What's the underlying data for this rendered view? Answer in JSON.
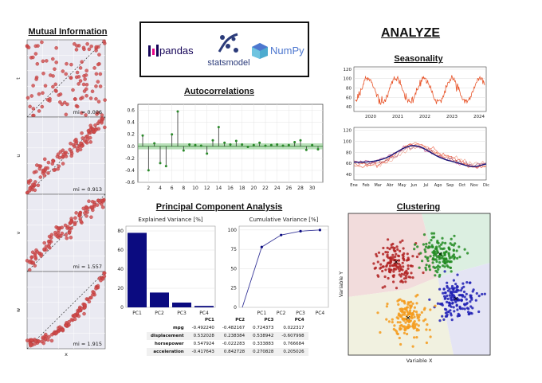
{
  "mutual_info": {
    "title": "Mutual Information",
    "xlabel": "x",
    "panels": [
      {
        "ylabel": "t",
        "mi": "mi = 0.006"
      },
      {
        "ylabel": "u",
        "mi": "mi = 0.913"
      },
      {
        "ylabel": "v",
        "mi": "mi = 1.557"
      },
      {
        "ylabel": "w",
        "mi": "mi = 1.915"
      }
    ]
  },
  "logos": {
    "pandas": "pandas",
    "statsmodel": "statsmodel",
    "numpy": "NumPy"
  },
  "analyze_title": "ANALYZE",
  "autocorr": {
    "title": "Autocorrelations",
    "y_ticks": [
      "0.6",
      "0.4",
      "0.2",
      "0.0",
      "-0.2",
      "-0.4",
      "-0.6"
    ],
    "x_ticks": [
      "2",
      "4",
      "6",
      "8",
      "10",
      "12",
      "14",
      "16",
      "18",
      "20",
      "22",
      "24",
      "26",
      "28",
      "30"
    ]
  },
  "seasonality": {
    "title": "Seasonality",
    "top_y_ticks": [
      "120",
      "100",
      "80",
      "60",
      "40"
    ],
    "top_x_ticks": [
      "2020",
      "2021",
      "2022",
      "2023",
      "2024"
    ],
    "bottom_y_ticks": [
      "120",
      "100",
      "80",
      "60",
      "40"
    ],
    "bottom_x_ticks": [
      "Ene",
      "Feb",
      "Mar",
      "Abr",
      "May",
      "Jun",
      "Jul",
      "Ago",
      "Sep",
      "Oct",
      "Nov",
      "Dic"
    ]
  },
  "pca": {
    "title": "Principal Component Analysis",
    "explained_title": "Explained Variance [%]",
    "cumulative_title": "Cumulative Variance [%]",
    "exp_y_ticks": [
      "80",
      "60",
      "40",
      "20",
      "0"
    ],
    "cum_y_ticks": [
      "100",
      "75",
      "50",
      "25",
      "0"
    ],
    "table": {
      "headers": [
        "",
        "PC1",
        "PC2",
        "PC3",
        "PC4"
      ],
      "rows": [
        [
          "mpg",
          "-0.492240",
          "-0.482167",
          "0.724373",
          "0.022317"
        ],
        [
          "displacement",
          "0.532028",
          "0.238384",
          "0.538942",
          "-0.607998"
        ],
        [
          "horsepower",
          "0.547924",
          "-0.022283",
          "0.333883",
          "0.766684"
        ],
        [
          "acceleration",
          "-0.417643",
          "0.842728",
          "0.270828",
          "0.205026"
        ]
      ]
    }
  },
  "clustering": {
    "title": "Clustering",
    "xlabel": "Variable X",
    "ylabel": "Variable Y",
    "colors": [
      "#b22222",
      "#228b22",
      "#1f1fb4",
      "#f59a1a"
    ],
    "region_colors": [
      "#f2dcdc",
      "#dcefe1",
      "#e4e4f4",
      "#f1f1e0"
    ]
  },
  "chart_data": [
    {
      "type": "bar",
      "title": "Autocorrelations",
      "categories": [
        1,
        2,
        3,
        4,
        5,
        6,
        7,
        8,
        9,
        10,
        11,
        12,
        13,
        14,
        15,
        16,
        17,
        18,
        19,
        20,
        21,
        22,
        23,
        24,
        25,
        26,
        27,
        28,
        29,
        30,
        31
      ],
      "values": [
        0.18,
        -0.4,
        0.05,
        -0.28,
        -0.33,
        0.2,
        0.58,
        -0.07,
        0.03,
        0.02,
        0.01,
        -0.12,
        0.1,
        0.32,
        0.06,
        0.03,
        0.09,
        0.03,
        -0.01,
        0.02,
        0.06,
        0.01,
        0.02,
        0.03,
        0.01,
        0.02,
        0.07,
        0.1,
        -0.06,
        0.02,
        -0.05
      ],
      "ylim": [
        -0.6,
        0.7
      ]
    },
    {
      "type": "bar",
      "title": "Explained Variance [%]",
      "categories": [
        "PC1",
        "PC2",
        "PC3",
        "PC4"
      ],
      "values": [
        78,
        15.5,
        5,
        1.5
      ],
      "ylim": [
        0,
        85
      ]
    },
    {
      "type": "line",
      "title": "Cumulative Variance [%]",
      "x": [
        "PC1",
        "PC2",
        "PC3",
        "PC4"
      ],
      "values": [
        78,
        93.5,
        98.5,
        100
      ],
      "ylim": [
        0,
        105
      ]
    }
  ]
}
